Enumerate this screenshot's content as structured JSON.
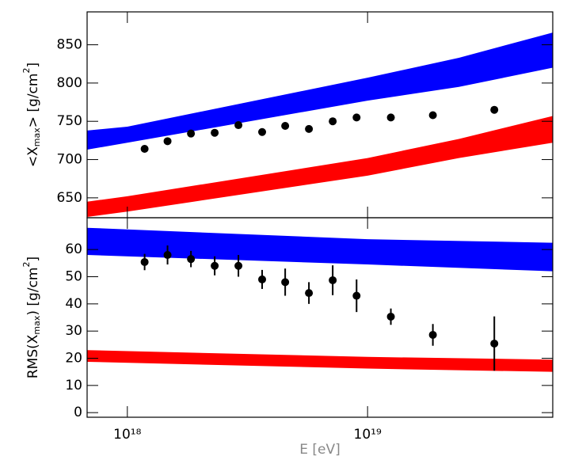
{
  "chart_data": [
    {
      "type": "scatter",
      "ylabel": [
        {
          "text": "<X"
        },
        {
          "text": "max",
          "shift": "sub"
        },
        {
          "text": "> [g/cm"
        },
        {
          "text": "2",
          "shift": "super"
        },
        {
          "text": "]"
        }
      ],
      "xscale": "log",
      "xlim": [
        6.8e+17,
        5.9e+19
      ],
      "ylim": [
        624,
        893
      ],
      "yticks": [
        650,
        700,
        750,
        800,
        850
      ],
      "color": "#000000",
      "x": [
        1.18e+18,
        1.47e+18,
        1.84e+18,
        2.31e+18,
        2.9e+18,
        3.64e+18,
        4.54e+18,
        5.7e+18,
        7.16e+18,
        9e+18,
        1.25e+19,
        1.87e+19,
        3.37e+19
      ],
      "values": [
        714,
        724,
        734,
        735,
        745,
        736,
        744,
        740,
        750,
        755,
        755,
        758,
        765
      ],
      "bands": [
        {
          "color": "#0000ff",
          "x": [
            6.8e+17,
            1e+18,
            1e+19,
            2.4e+19,
            5.9e+19
          ],
          "upper": [
            738,
            743,
            807,
            833,
            866
          ],
          "lower": [
            713,
            722,
            777,
            795,
            820
          ]
        },
        {
          "color": "#ff0000",
          "x": [
            6.8e+17,
            1e+18,
            1e+19,
            2.4e+19,
            5.9e+19
          ],
          "upper": [
            645,
            652,
            702,
            727,
            757
          ],
          "lower": [
            625,
            632,
            679,
            702,
            722
          ]
        }
      ]
    },
    {
      "type": "scatter",
      "ylabel": [
        {
          "text": "RMS(X"
        },
        {
          "text": "max",
          "shift": "sub"
        },
        {
          "text": ")  [g/cm"
        },
        {
          "text": "2",
          "shift": "super"
        },
        {
          "text": "]"
        }
      ],
      "xlabel": "E [eV]",
      "xscale": "log",
      "xlim": [
        6.8e+17,
        5.9e+19
      ],
      "ylim": [
        -1.7,
        71.7
      ],
      "xticks": [
        {
          "value": 1e+18,
          "label": "10¹⁸"
        },
        {
          "value": 1e+19,
          "label": "10¹⁹"
        }
      ],
      "yticks": [
        0,
        10,
        20,
        30,
        40,
        50,
        60
      ],
      "color": "#000000",
      "x": [
        1.18e+18,
        1.47e+18,
        1.84e+18,
        2.31e+18,
        2.9e+18,
        3.64e+18,
        4.54e+18,
        5.7e+18,
        7.16e+18,
        9e+18,
        1.25e+19,
        1.87e+19,
        3.37e+19
      ],
      "values": [
        55.4,
        58,
        56.5,
        54,
        54,
        49,
        48,
        44,
        48.7,
        43,
        35.3,
        28.6,
        25.4
      ],
      "errors": [
        3,
        3.5,
        3,
        3.5,
        4,
        3.5,
        5,
        4,
        5.5,
        6,
        3,
        4,
        10
      ],
      "bands": [
        {
          "color": "#0000ff",
          "x": [
            6.8e+17,
            1e+19,
            5.9e+19
          ],
          "upper": [
            68,
            63.8,
            62.5
          ],
          "lower": [
            58,
            54.5,
            52
          ]
        },
        {
          "color": "#ff0000",
          "x": [
            6.8e+17,
            1e+19,
            5.9e+19
          ],
          "upper": [
            23,
            20.5,
            19.5
          ],
          "lower": [
            18.7,
            16.2,
            15
          ]
        }
      ]
    }
  ]
}
